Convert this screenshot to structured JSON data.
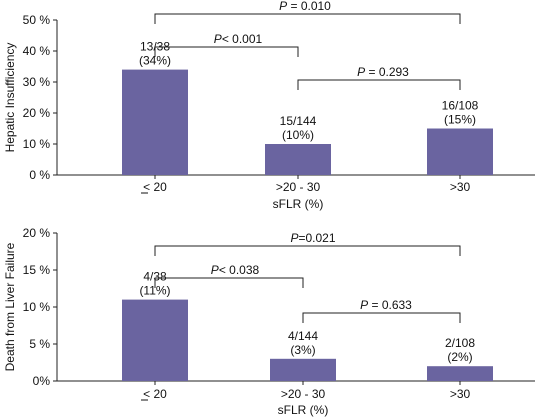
{
  "colors": {
    "bar": "#6a64a0",
    "axis": "#222222",
    "bracket": "#222222"
  },
  "chart_data": [
    {
      "type": "bar",
      "ylabel": "Hepatic Insufficiency",
      "xlabel": "sFLR (%)",
      "ylim": [
        0,
        50
      ],
      "yticks": [
        "0 %",
        "10 %",
        "20 %",
        "30 %",
        "40 %",
        "50 %"
      ],
      "categories": [
        "< 20",
        ">20 - 30",
        ">30"
      ],
      "values": [
        34,
        10,
        15
      ],
      "labels": [
        {
          "count": "13/38",
          "pct": "(34%)"
        },
        {
          "count": "15/144",
          "pct": "(10%)"
        },
        {
          "count": "16/108",
          "pct": "(15%)"
        }
      ],
      "comparisons": [
        {
          "from": 0,
          "to": 2,
          "p_symbol": "P",
          "p_text": " = 0.010"
        },
        {
          "from": 0,
          "to": 1,
          "p_symbol": "P",
          "p_text": "< 0.001"
        },
        {
          "from": 1,
          "to": 2,
          "p_symbol": "P",
          "p_text": " = 0.293"
        }
      ]
    },
    {
      "type": "bar",
      "ylabel": "Death from Liver Failure",
      "xlabel": "sFLR (%)",
      "ylim": [
        0,
        20
      ],
      "yticks": [
        "0%",
        "5 %",
        "10 %",
        "15 %",
        "20 %"
      ],
      "categories": [
        "< 20",
        ">20 - 30",
        ">30"
      ],
      "values": [
        11,
        3,
        2
      ],
      "labels": [
        {
          "count": "4/38",
          "pct": "(11%)"
        },
        {
          "count": "4/144",
          "pct": "(3%)"
        },
        {
          "count": "2/108",
          "pct": "(2%)"
        }
      ],
      "comparisons": [
        {
          "from": 0,
          "to": 2,
          "p_symbol": "P",
          "p_text": "=0.021"
        },
        {
          "from": 0,
          "to": 1,
          "p_symbol": "P",
          "p_text": "< 0.038"
        },
        {
          "from": 1,
          "to": 2,
          "p_symbol": "P",
          "p_text": " = 0.633"
        }
      ]
    }
  ]
}
